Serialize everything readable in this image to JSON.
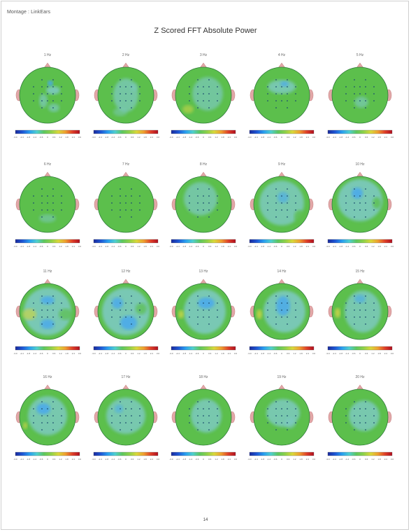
{
  "header": {
    "montage_label": "Montage : LinkEars",
    "title": "Z Scored FFT Absolute Power"
  },
  "scale_ticks": [
    "-3.0",
    "-2.4",
    "-1.8",
    "-1.2",
    "-0.6",
    "0",
    "0.6",
    "1.2",
    "1.8",
    "2.4",
    "3.0"
  ],
  "colors": {
    "scale_gradient": [
      "#1a2a9c",
      "#1e57d6",
      "#2aa0f0",
      "#4fd0d0",
      "#5ec85e",
      "#8fd24a",
      "#d9d93a",
      "#f0a030",
      "#e0402a",
      "#b01020"
    ],
    "head_green": "#5cbf4c",
    "head_cyan": "#7dc9c0",
    "head_blue": "#4aa8ee",
    "head_yellow": "#c8d44a",
    "ear_pink": "#e2a7a7"
  },
  "maps": [
    {
      "freq": "1 Hz",
      "pattern": 0
    },
    {
      "freq": "2 Hz",
      "pattern": 1
    },
    {
      "freq": "3 Hz",
      "pattern": 2
    },
    {
      "freq": "4 Hz",
      "pattern": 3
    },
    {
      "freq": "5 Hz",
      "pattern": 4
    },
    {
      "freq": "6 Hz",
      "pattern": 5
    },
    {
      "freq": "7 Hz",
      "pattern": 6
    },
    {
      "freq": "8 Hz",
      "pattern": 7
    },
    {
      "freq": "9 Hz",
      "pattern": 8
    },
    {
      "freq": "10 Hz",
      "pattern": 9
    },
    {
      "freq": "11 Hz",
      "pattern": 10
    },
    {
      "freq": "12 Hz",
      "pattern": 11
    },
    {
      "freq": "13 Hz",
      "pattern": 12
    },
    {
      "freq": "14 Hz",
      "pattern": 13
    },
    {
      "freq": "15 Hz",
      "pattern": 14
    },
    {
      "freq": "16 Hz",
      "pattern": 15
    },
    {
      "freq": "17 Hz",
      "pattern": 16
    },
    {
      "freq": "18 Hz",
      "pattern": 17
    },
    {
      "freq": "19 Hz",
      "pattern": 18
    },
    {
      "freq": "20 Hz",
      "pattern": 19
    }
  ],
  "footer": {
    "page_number": "14"
  }
}
